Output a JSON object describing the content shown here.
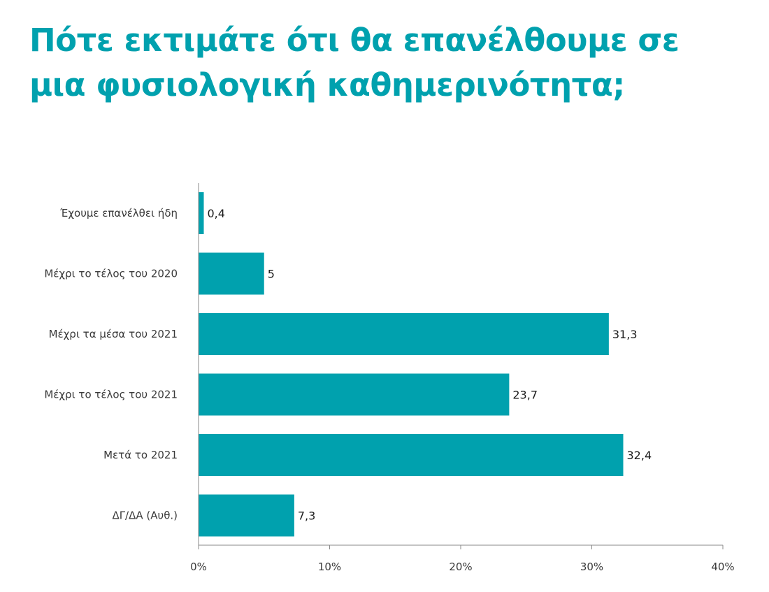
{
  "header": {
    "title": "Πότε εκτιμάτε ότι θα επανέλθουμε σε μια φυσιολογική καθημερινότητα;"
  },
  "chart_data": {
    "type": "bar",
    "orientation": "horizontal",
    "title": "Πότε εκτιμάτε ότι θα επανέλθουμε σε μια φυσιολογική καθημερινότητα;",
    "categories": [
      "Έχουμε επανέλθει ήδη",
      "Μέχρι το τέλος του 2020",
      "Μέχρι τα μέσα του 2021",
      "Μέχρι το τέλος του 2021",
      "Μετά το 2021",
      "ΔΓ/ΔΑ (Αυθ.)"
    ],
    "values": [
      0.4,
      5,
      31.3,
      23.7,
      32.4,
      7.3
    ],
    "value_labels": [
      "0,4",
      "5",
      "31,3",
      "23,7",
      "32,4",
      "7,3"
    ],
    "xlim": [
      0,
      40
    ],
    "x_ticks": [
      0,
      10,
      20,
      30,
      40
    ],
    "x_tick_labels": [
      "0%",
      "10%",
      "20%",
      "30%",
      "40%"
    ],
    "xlabel": "",
    "ylabel": "",
    "grid": false,
    "legend": "none",
    "bar_color": "#00a1ae",
    "title_color": "#00a1ae"
  }
}
